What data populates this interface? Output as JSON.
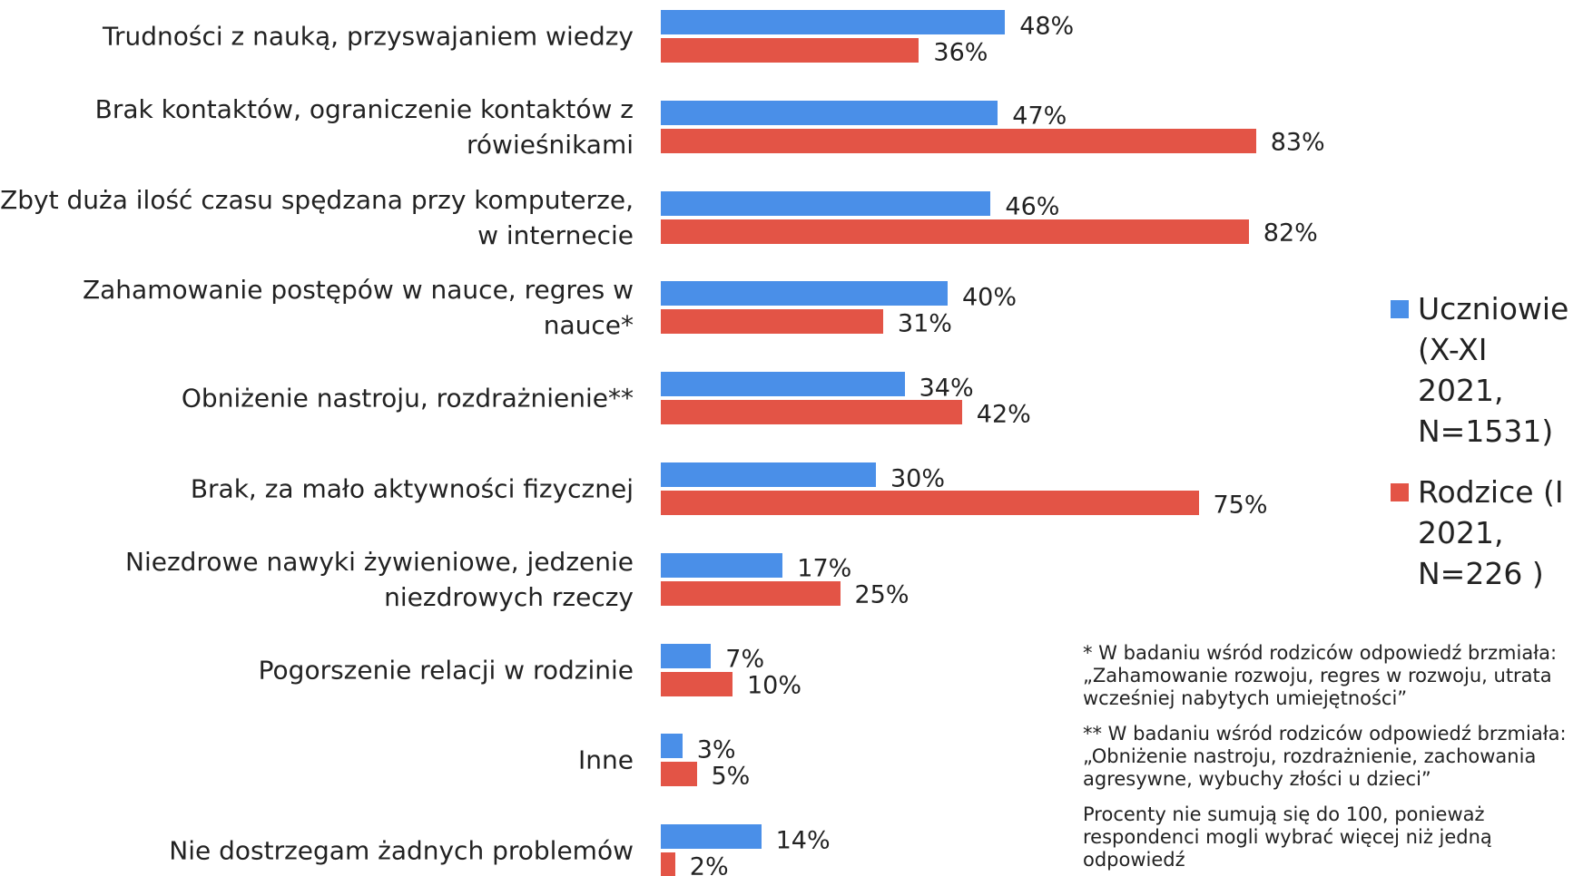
{
  "chart_data": {
    "type": "bar",
    "orientation": "horizontal",
    "categories": [
      "Trudności z nauką, przyswajaniem wiedzy",
      "Brak kontaktów, ograniczenie kontaktów z rówieśnikami",
      "Zbyt duża ilość czasu spędzana przy komputerze, w internecie",
      "Zahamowanie postępów w nauce, regres w nauce*",
      "Obniżenie nastroju, rozdrażnienie**",
      "Brak, za mało aktywności fizycznej",
      "Niezdrowe nawyki żywieniowe, jedzenie niezdrowych rzeczy",
      "Pogorszenie relacji w rodzinie",
      "Inne",
      "Nie dostrzegam żadnych problemów"
    ],
    "series": [
      {
        "name": "Uczniowie (X-XI 2021, N=1531)",
        "color": "#4a8fe8",
        "values": [
          48,
          47,
          46,
          40,
          34,
          30,
          17,
          7,
          3,
          14
        ],
        "value_labels": [
          "48%",
          "47%",
          "46%",
          "40%",
          "34%",
          "30%",
          "17%",
          "7%",
          "3%",
          "14%"
        ]
      },
      {
        "name": "Rodzice (I 2021, N=226 )",
        "color": "#e35446",
        "values": [
          36,
          83,
          82,
          31,
          42,
          75,
          25,
          10,
          5,
          2
        ],
        "value_labels": [
          "36%",
          "83%",
          "82%",
          "31%",
          "42%",
          "75%",
          "25%",
          "10%",
          "5%",
          "2%"
        ]
      }
    ],
    "legend": "right",
    "notes": [
      "* W badaniu wśród rodziców odpowiedź brzmiała: „Zahamowanie rozwoju, regres w rozwoju, utrata wcześniej nabytych umiejętności”",
      "** W badaniu wśród rodziców odpowiedź brzmiała: „Obniżenie nastroju, rozdrażnienie, zachowania agresywne, wybuchy złości u dzieci”",
      "Procenty nie sumują się do 100, ponieważ respondenci mogli wybrać więcej niż jedną odpowiedź"
    ]
  }
}
